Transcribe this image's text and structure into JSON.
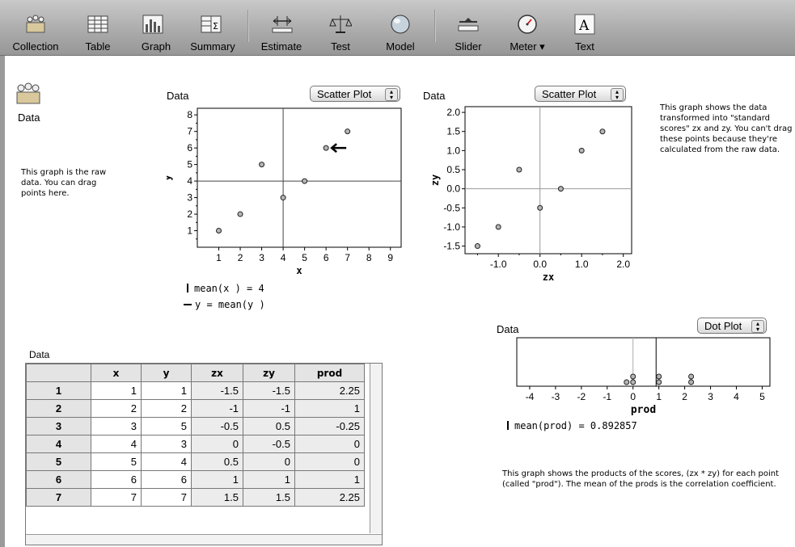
{
  "toolbar": {
    "items": [
      {
        "label": "Collection",
        "icon": "collection-icon"
      },
      {
        "label": "Table",
        "icon": "table-icon"
      },
      {
        "label": "Graph",
        "icon": "graph-icon"
      },
      {
        "label": "Summary",
        "icon": "summary-icon"
      },
      {
        "label": "Estimate",
        "icon": "estimate-icon"
      },
      {
        "label": "Test",
        "icon": "test-icon"
      },
      {
        "label": "Model",
        "icon": "model-icon"
      },
      {
        "label": "Slider",
        "icon": "slider-icon"
      },
      {
        "label": "Meter ▾",
        "icon": "meter-icon"
      },
      {
        "label": "Text",
        "icon": "text-icon"
      }
    ]
  },
  "collection": {
    "label": "Data"
  },
  "notes": {
    "raw": "This graph is the raw data. You can drag points here.",
    "standard": "This graph shows the data transformed into \"standard scores\" zx and zy. You can't drag these points because they're calculated from the raw data.",
    "products": "This graph shows the products of the scores, (zx * zy) for each point (called \"prod\"). The mean of the prods is the correlation coefficient."
  },
  "graph1": {
    "title": "Data",
    "plot_type": "Scatter Plot",
    "xlabel": "x",
    "ylabel": "y",
    "legend_mean_x": "mean(x ) = 4",
    "legend_mean_y": "y = mean(y )"
  },
  "graph2": {
    "title": "Data",
    "plot_type": "Scatter Plot",
    "xlabel": "zx",
    "ylabel": "zy"
  },
  "graph3": {
    "title": "Data",
    "plot_type": "Dot Plot",
    "xlabel": "prod",
    "legend_mean": "mean(prod) = 0.892857"
  },
  "table": {
    "title": "Data",
    "columns": [
      "x",
      "y",
      "zx",
      "zy",
      "prod"
    ],
    "rows": [
      {
        "id": "1",
        "x": "1",
        "y": "1",
        "zx": "-1.5",
        "zy": "-1.5",
        "prod": "2.25"
      },
      {
        "id": "2",
        "x": "2",
        "y": "2",
        "zx": "-1",
        "zy": "-1",
        "prod": "1"
      },
      {
        "id": "3",
        "x": "3",
        "y": "5",
        "zx": "-0.5",
        "zy": "0.5",
        "prod": "-0.25"
      },
      {
        "id": "4",
        "x": "4",
        "y": "3",
        "zx": "0",
        "zy": "-0.5",
        "prod": "0"
      },
      {
        "id": "5",
        "x": "5",
        "y": "4",
        "zx": "0.5",
        "zy": "0",
        "prod": "0"
      },
      {
        "id": "6",
        "x": "6",
        "y": "6",
        "zx": "1",
        "zy": "1",
        "prod": "1"
      },
      {
        "id": "7",
        "x": "7",
        "y": "7",
        "zx": "1.5",
        "zy": "1.5",
        "prod": "2.25"
      }
    ]
  },
  "chart_data": [
    {
      "type": "scatter",
      "title": "Data",
      "xlabel": "x",
      "ylabel": "y",
      "x": [
        1,
        2,
        3,
        4,
        5,
        6,
        7
      ],
      "y": [
        1,
        2,
        5,
        3,
        4,
        6,
        7
      ],
      "xlim": [
        0,
        9.5
      ],
      "ylim": [
        0,
        8.4
      ],
      "xticks": [
        "1",
        "2",
        "3",
        "4",
        "5",
        "6",
        "7",
        "8",
        "9"
      ],
      "yticks": [
        "1",
        "2",
        "3",
        "4",
        "5",
        "6",
        "7",
        "8"
      ],
      "mean_x": 4,
      "mean_y": 4
    },
    {
      "type": "scatter",
      "title": "Data",
      "xlabel": "zx",
      "ylabel": "zy",
      "x": [
        -1.5,
        -1,
        -0.5,
        0,
        0.5,
        1,
        1.5
      ],
      "y": [
        -1.5,
        -1,
        0.5,
        -0.5,
        0,
        1,
        1.5
      ],
      "xlim": [
        -1.8,
        2.2
      ],
      "ylim": [
        -1.7,
        2.15
      ],
      "xticks": [
        "-1.0",
        "0.0",
        "1.0",
        "2.0"
      ],
      "yticks": [
        "-1.5",
        "-1.0",
        "-0.5",
        "0.0",
        "0.5",
        "1.0",
        "1.5",
        "2.0"
      ]
    },
    {
      "type": "dot",
      "title": "Data",
      "xlabel": "prod",
      "x": [
        -0.25,
        0,
        0,
        1,
        1,
        2.25,
        2.25
      ],
      "xlim": [
        -4.5,
        5.3
      ],
      "xticks": [
        "-4",
        "-3",
        "-2",
        "-1",
        "0",
        "1",
        "2",
        "3",
        "4",
        "5"
      ],
      "mean": 0.892857
    }
  ]
}
